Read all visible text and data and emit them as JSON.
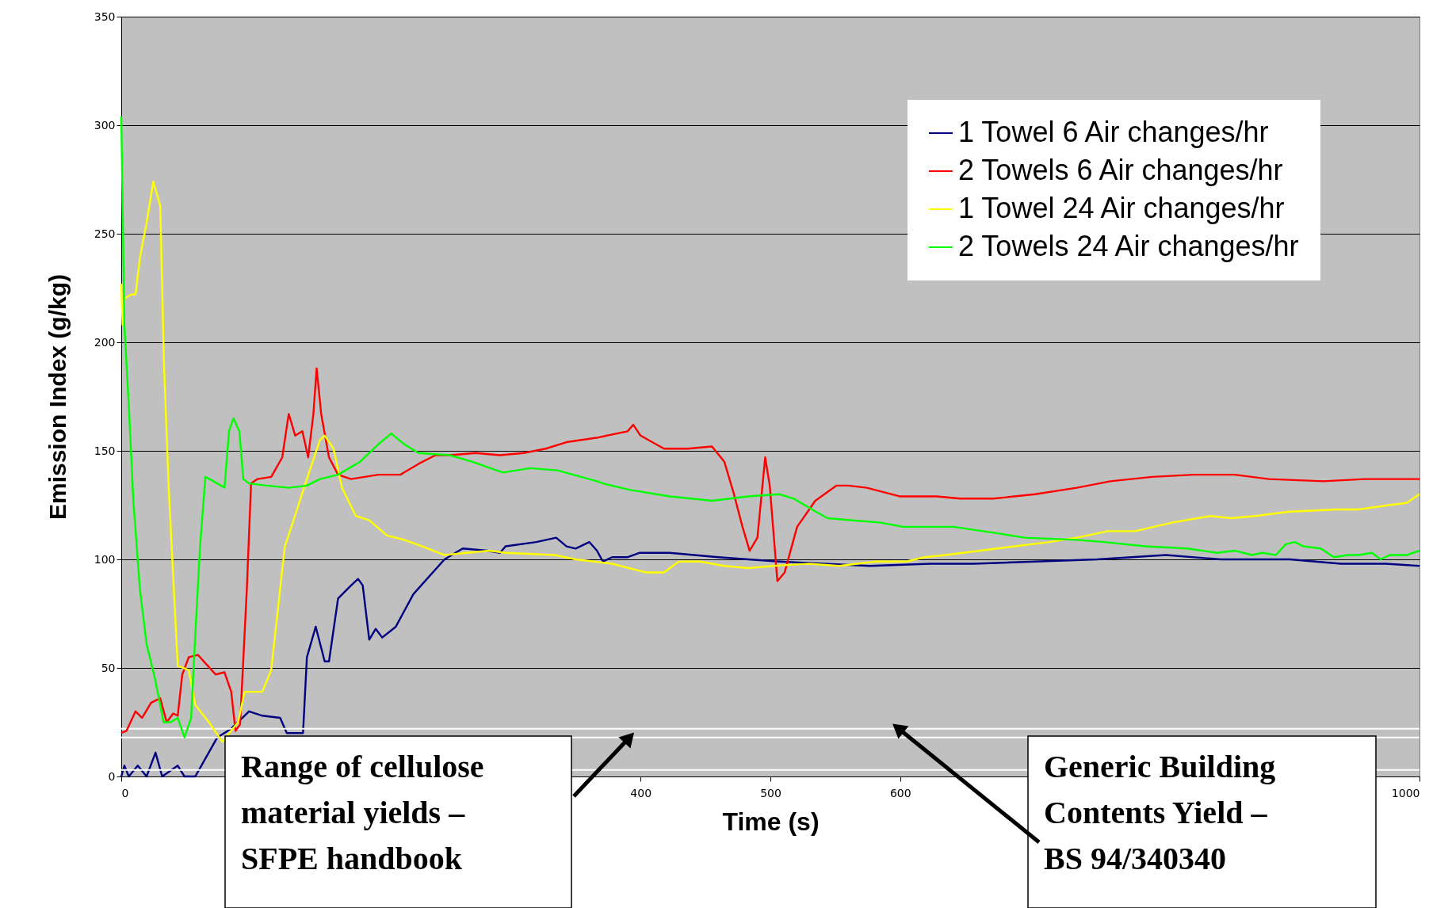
{
  "chart_data": {
    "type": "line",
    "xlabel": "Time (s)",
    "ylabel": "Emission Index (g/kg)",
    "xlim": [
      0,
      1000
    ],
    "xticks": [
      0,
      {
        "value": 100,
        "label": null
      },
      {
        "value": 200,
        "label": null
      },
      {
        "value": 300,
        "label": null
      },
      400,
      500,
      600,
      {
        "value": 700,
        "label": null
      },
      {
        "value": 800,
        "label": null
      },
      {
        "value": 900,
        "label": null
      },
      1000
    ],
    "ylim": [
      0,
      350
    ],
    "yticks": [
      0,
      50,
      100,
      150,
      200,
      250,
      300,
      350
    ],
    "grid": "y",
    "legend": "top right",
    "series": [
      {
        "name": "1 Towel  6 Air changes/hr",
        "color": "#000080",
        "x": [
          0,
          2.4,
          5.8,
          12.7,
          19.5,
          26.4,
          31.5,
          43.5,
          48.7,
          57,
          74,
          84.7,
          98.4,
          108.7,
          122.4,
          127.5,
          140,
          143,
          149.8,
          156.7,
          160,
          167,
          172,
          177,
          182.4,
          186,
          191,
          196,
          201,
          211.5,
          225,
          235.5,
          249,
          263,
          282,
          291.7,
          296,
          319.6,
          335,
          343,
          350,
          360.5,
          366.4,
          371,
          378,
          389.7,
          399,
          422.5,
          460,
          483,
          507,
          541.6,
          576.6,
          623,
          656.4,
          704,
          751.7,
          804.6,
          847,
          900,
          939.6,
          974,
          1000
        ],
        "values": [
          0,
          5,
          0,
          5,
          0,
          11,
          0,
          5,
          0,
          0,
          18,
          22,
          30,
          28,
          27,
          20,
          20,
          55,
          69,
          53,
          53,
          82,
          85,
          88,
          91,
          88,
          63,
          68,
          64,
          69,
          84,
          91,
          100,
          105,
          104,
          103,
          106,
          108,
          110,
          106,
          105,
          108,
          104,
          99,
          101,
          101,
          103,
          103,
          101,
          100,
          99,
          98,
          97,
          98,
          98,
          99,
          100,
          102,
          100,
          100,
          98,
          98,
          97
        ]
      },
      {
        "name": "2 Towels 6 Air changes/hr",
        "color": "#ff0000",
        "x": [
          0,
          4,
          11,
          16,
          23,
          30,
          35,
          40,
          43.5,
          47,
          52,
          59,
          72.7,
          79.5,
          84.7,
          88,
          91.5,
          96.7,
          100,
          105,
          115.5,
          124,
          129,
          134,
          139.5,
          144,
          148,
          150.5,
          154,
          160,
          167,
          177,
          198,
          215,
          229,
          242,
          253,
          273,
          291.6,
          310,
          327,
          343,
          366,
          390,
          394.4,
          400,
          418,
          436.5,
          455,
          464.5,
          471.5,
          478.5,
          484,
          490,
          496,
          499.5,
          505.4,
          511,
          520.6,
          534.6,
          551,
          560,
          574.3,
          600,
          628,
          646,
          672,
          704,
          736,
          762,
          794,
          826,
          857.6,
          884,
          926,
          958,
          1000
        ],
        "values": [
          20,
          21,
          30,
          27,
          34,
          36,
          25,
          29,
          28,
          47,
          55,
          56,
          47,
          48,
          39,
          21,
          24,
          86,
          135,
          137,
          138,
          147,
          167,
          157,
          159,
          147,
          167,
          188,
          167,
          147,
          139,
          137,
          139,
          139,
          144,
          148,
          148,
          149,
          148,
          149,
          151,
          154,
          156,
          159,
          162,
          157,
          151,
          151,
          152,
          145,
          131,
          115,
          104,
          110,
          147,
          134,
          90,
          94,
          115,
          127,
          134,
          134,
          133,
          129,
          129,
          128,
          128,
          130,
          133,
          136,
          138,
          139,
          139,
          137,
          136,
          137,
          137
        ]
      },
      {
        "name": "1 Towel  24 Air changes/hr",
        "color": "#ffff00",
        "x": [
          0,
          1,
          2.4,
          7.5,
          11,
          14.4,
          19.5,
          24.7,
          30,
          33,
          36.7,
          43.5,
          52,
          57,
          67.5,
          77.8,
          90,
          95,
          108.7,
          115.5,
          126,
          132.7,
          143,
          153,
          156.7,
          163.5,
          170,
          180.7,
          191,
          204.7,
          218,
          232,
          249,
          266,
          283.5,
          296,
          334,
          350,
          378,
          404,
          418,
          429.5,
          446,
          464.5,
          483,
          502,
          530,
          553,
          581,
          604.7,
          618.7,
          635,
          661.6,
          688,
          715,
          736,
          760,
          781,
          810,
          839,
          855,
          873.5,
          900,
          937,
          953,
          976.7,
          990,
          1000
        ],
        "values": [
          227,
          208,
          220,
          222,
          222,
          239,
          255,
          274,
          263,
          188,
          131,
          51,
          49,
          33,
          25,
          16,
          25,
          39,
          39,
          49,
          106,
          118,
          137,
          155,
          157,
          151,
          133,
          120,
          118,
          111,
          109,
          106,
          102,
          103,
          104,
          103,
          102,
          100,
          98,
          94,
          94,
          99,
          99,
          97,
          96,
          97,
          98,
          97,
          99,
          99,
          101,
          102,
          104,
          106,
          108,
          110,
          113,
          113,
          117,
          120,
          119,
          120,
          122,
          123,
          123,
          125,
          126,
          130
        ]
      },
      {
        "name": "2 Towels 24 Air changes/hr",
        "color": "#00ff00",
        "x": [
          0,
          1,
          2.4,
          5.8,
          9.3,
          14.4,
          19.5,
          26,
          32.6,
          38,
          43.5,
          48.7,
          53.8,
          57,
          60.7,
          64.8,
          71,
          79.5,
          83,
          86.4,
          91,
          94,
          98.4,
          112,
          129,
          143,
          153,
          167,
          184,
          198,
          208,
          218,
          229,
          253,
          270,
          294,
          315,
          336,
          366.4,
          371,
          392,
          422.5,
          455,
          483,
          507,
          518,
          535,
          544,
          563,
          584,
          602.4,
          641,
          675,
          696,
          736,
          757,
          789,
          821,
          844,
          858,
          871,
          879,
          889.4,
          897,
          904,
          910.5,
          924,
          934,
          945,
          953,
          963.5,
          970,
          977,
          990,
          1000
        ],
        "values": [
          304,
          265,
          208,
          171,
          127,
          86,
          61,
          45,
          25,
          25,
          27,
          18,
          27,
          65,
          106,
          138,
          136,
          133,
          159,
          165,
          159,
          137,
          135,
          134,
          133,
          134,
          137,
          139,
          145,
          153,
          158,
          153,
          149,
          148,
          145,
          140,
          142,
          141,
          136,
          135,
          132,
          129,
          127,
          129,
          130,
          128,
          122,
          119,
          118,
          117,
          115,
          115,
          112,
          110,
          109,
          108,
          106,
          105,
          103,
          104,
          102,
          103,
          102,
          107,
          108,
          106,
          105,
          101,
          102,
          102,
          103,
          100,
          102,
          102,
          104
        ]
      }
    ],
    "ref_lines": [
      {
        "axis": "y",
        "value": 3,
        "color": "#ffffff"
      },
      {
        "axis": "y",
        "value": 18,
        "color": "#ffffff",
        "label": "Range of cellulose material yields – SFPE handbook"
      },
      {
        "axis": "y",
        "value": 22,
        "color": "#ffffff",
        "label": "Generic Building Contents Yield – BS 94/340340"
      }
    ]
  }
}
